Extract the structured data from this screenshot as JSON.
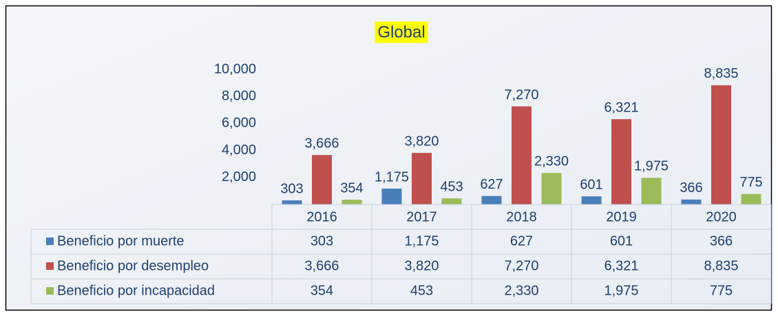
{
  "chart_data": {
    "type": "bar",
    "title": "Global",
    "categories": [
      "2016",
      "2017",
      "2018",
      "2019",
      "2020"
    ],
    "series": [
      {
        "name": "Beneficio por muerte",
        "color": "#4a7ebb",
        "values": [
          303,
          1175,
          627,
          601,
          366
        ],
        "value_labels": [
          "303",
          "1,175",
          "627",
          "601",
          "366"
        ]
      },
      {
        "name": "Beneficio por desempleo",
        "color": "#c0504d",
        "values": [
          3666,
          3820,
          7270,
          6321,
          8835
        ],
        "value_labels": [
          "3,666",
          "3,820",
          "7,270",
          "6,321",
          "8,835"
        ]
      },
      {
        "name": "Beneficio por incapacidad",
        "color": "#9bbb59",
        "values": [
          354,
          453,
          2330,
          1975,
          775
        ],
        "value_labels": [
          "354",
          "453",
          "2,330",
          "1,975",
          "775"
        ]
      }
    ],
    "ylim": [
      0,
      10000
    ],
    "yticks": [
      {
        "value": 2000,
        "label": "2,000"
      },
      {
        "value": 4000,
        "label": "4,000"
      },
      {
        "value": 6000,
        "label": "6,000"
      },
      {
        "value": 8000,
        "label": "8,000"
      },
      {
        "value": 10000,
        "label": "10,000"
      }
    ],
    "grid": false,
    "data_table": true
  }
}
